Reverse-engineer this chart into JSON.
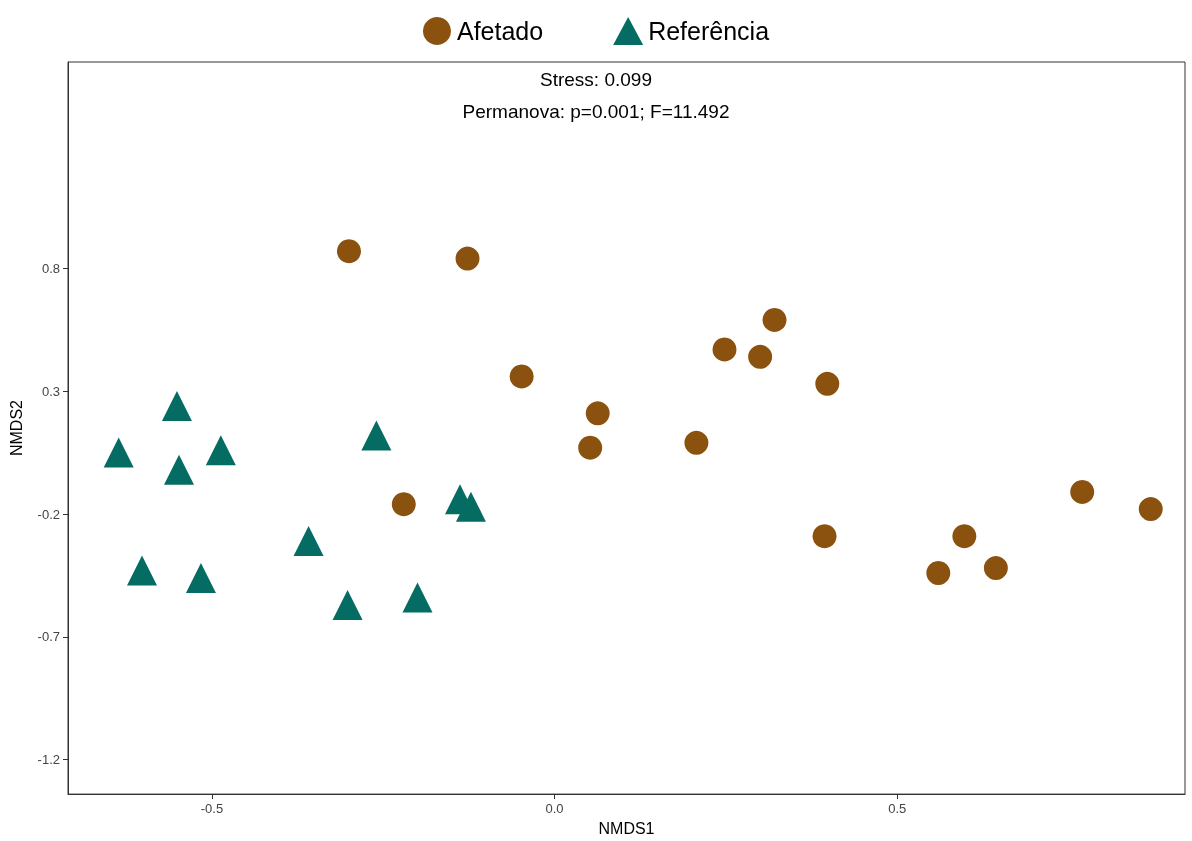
{
  "chart_data": {
    "type": "scatter",
    "xlabel": "NMDS1",
    "ylabel": "NMDS2",
    "annotations": [
      "Stress: 0.099",
      "Permanova: p=0.001; F=11.492"
    ],
    "xlim": [
      -0.71,
      0.92
    ],
    "ylim": [
      -1.34,
      1.64
    ],
    "xticks": [
      -0.5,
      {
        "value": 0,
        "label": "0.0"
      },
      0.5
    ],
    "yticks": [
      -1.2,
      -0.7,
      -0.2,
      0.3,
      0.8
    ],
    "grid": false,
    "legend": "top",
    "series": [
      {
        "name": "Afetado",
        "color": "#8b520f",
        "marker": "circle",
        "x": [
          -0.3,
          -0.127,
          -0.048,
          0.063,
          0.052,
          0.207,
          0.248,
          0.3,
          0.321,
          0.398,
          0.394,
          -0.22,
          0.56,
          0.598,
          0.644,
          0.77,
          0.87
        ],
        "values": [
          0.87,
          0.84,
          0.36,
          0.21,
          0.07,
          0.09,
          0.47,
          0.44,
          0.59,
          0.33,
          -0.29,
          -0.16,
          -0.44,
          -0.29,
          -0.42,
          -0.11,
          -0.18
        ]
      },
      {
        "name": "Referência",
        "color": "#046c63",
        "marker": "triangle",
        "x": [
          -0.636,
          -0.551,
          -0.548,
          -0.487,
          -0.602,
          -0.516,
          -0.359,
          -0.302,
          -0.26,
          -0.2,
          -0.138,
          -0.122
        ],
        "values": [
          0.05,
          0.24,
          -0.02,
          0.06,
          -0.43,
          -0.46,
          -0.31,
          -0.57,
          0.12,
          -0.54,
          -0.14,
          -0.17
        ]
      }
    ]
  }
}
